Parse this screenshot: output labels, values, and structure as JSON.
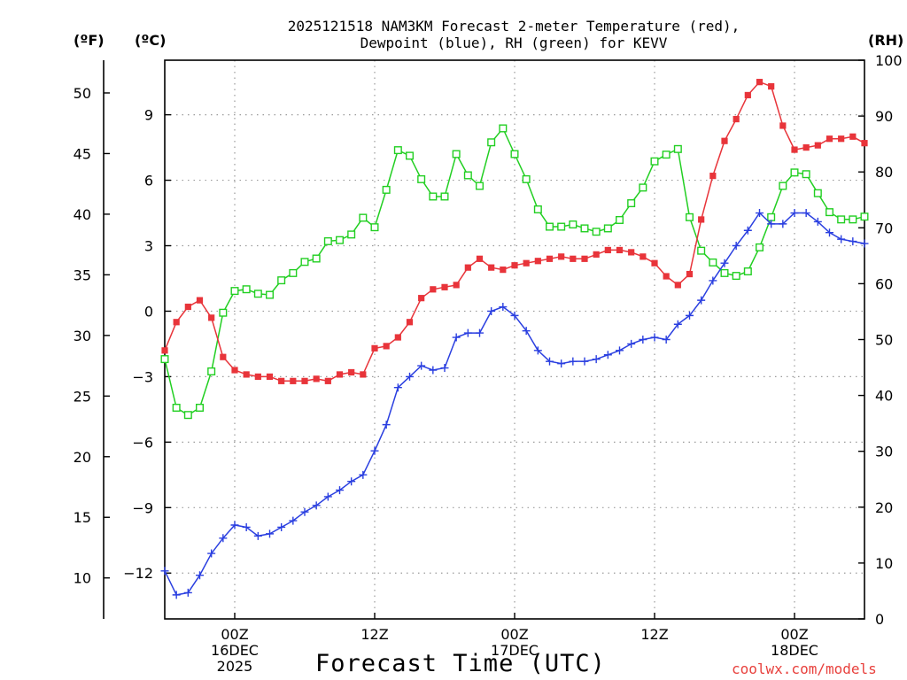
{
  "chart_data": {
    "type": "line",
    "title_line1": "2025121518 NAM3KM Forecast 2-meter Temperature (red),",
    "title_line2": "Dewpoint (blue), RH (green) for KEVV",
    "xlabel": "Forecast Time (UTC)",
    "credit": "coolwx.com/models",
    "units": {
      "fahrenheit": "(ºF)",
      "celsius": "(ºC)",
      "rh": "(RH)"
    },
    "x_hours_range": [
      -6,
      54
    ],
    "x_ticks": [
      {
        "hour": 0,
        "line1": "00Z",
        "line2": "16DEC",
        "line3": "2025"
      },
      {
        "hour": 12,
        "line1": "12Z",
        "line2": "",
        "line3": ""
      },
      {
        "hour": 24,
        "line1": "00Z",
        "line2": "17DEC",
        "line3": ""
      },
      {
        "hour": 36,
        "line1": "12Z",
        "line2": "",
        "line3": ""
      },
      {
        "hour": 48,
        "line1": "00Z",
        "line2": "18DEC",
        "line3": ""
      }
    ],
    "celsius_axis": {
      "range": [
        -14.1,
        11.5
      ],
      "ticks": [
        9,
        6,
        3,
        0,
        -3,
        -6,
        -9,
        -12
      ],
      "tick_labels": [
        "9",
        "6",
        "3",
        "0",
        "−3",
        "−6",
        "−9",
        "−12"
      ]
    },
    "fahrenheit_axis": {
      "ticks": [
        50,
        45,
        40,
        35,
        30,
        25,
        20,
        15,
        10
      ],
      "tick_labels": [
        "50",
        "45",
        "40",
        "35",
        "30",
        "25",
        "20",
        "15",
        "10"
      ]
    },
    "rh_axis": {
      "range": [
        0,
        100
      ],
      "ticks": [
        100,
        90,
        80,
        70,
        60,
        50,
        40,
        30,
        20,
        10,
        0
      ],
      "tick_labels": [
        "100",
        "90",
        "80",
        "70",
        "60",
        "50",
        "40",
        "30",
        "20",
        "10",
        "0"
      ]
    },
    "hours": [
      -6,
      -5,
      -4,
      -3,
      -2,
      -1,
      0,
      1,
      2,
      3,
      4,
      5,
      6,
      7,
      8,
      9,
      10,
      11,
      12,
      13,
      14,
      15,
      16,
      17,
      18,
      19,
      20,
      21,
      22,
      23,
      24,
      25,
      26,
      27,
      28,
      29,
      30,
      31,
      32,
      33,
      34,
      35,
      36,
      37,
      38,
      39,
      40,
      41,
      42,
      43,
      44,
      45,
      46,
      47,
      48,
      49,
      50,
      51,
      52,
      53,
      54
    ],
    "series": [
      {
        "name": "2-meter Temperature",
        "unit": "C",
        "color": "#e8343a",
        "marker": "filled-square",
        "values": [
          -1.8,
          -0.5,
          0.2,
          0.5,
          -0.3,
          -2.1,
          -2.7,
          -2.9,
          -3.0,
          -3.0,
          -3.2,
          -3.2,
          -3.2,
          -3.1,
          -3.2,
          -2.9,
          -2.8,
          -2.9,
          -1.7,
          -1.6,
          -1.2,
          -0.5,
          0.6,
          1.0,
          1.1,
          1.2,
          2.0,
          2.4,
          2.0,
          1.9,
          2.1,
          2.2,
          2.3,
          2.4,
          2.5,
          2.4,
          2.4,
          2.6,
          2.8,
          2.8,
          2.7,
          2.5,
          2.2,
          1.6,
          1.2,
          1.7,
          4.2,
          6.2,
          7.8,
          8.8,
          9.9,
          10.5,
          10.3,
          8.5,
          7.4,
          7.5,
          7.6,
          7.9,
          7.9,
          8.0,
          7.7
        ]
      },
      {
        "name": "Dewpoint",
        "unit": "C",
        "color": "#2a3fe0",
        "marker": "plus",
        "values": [
          -11.9,
          -13.0,
          -12.9,
          -12.1,
          -11.1,
          -10.4,
          -9.8,
          -9.9,
          -10.3,
          -10.2,
          -9.9,
          -9.6,
          -9.2,
          -8.9,
          -8.5,
          -8.2,
          -7.8,
          -7.5,
          -6.4,
          -5.2,
          -3.5,
          -3.0,
          -2.5,
          -2.7,
          -2.6,
          -1.2,
          -1.0,
          -1.0,
          0.0,
          0.2,
          -0.2,
          -0.9,
          -1.8,
          -2.3,
          -2.4,
          -2.3,
          -2.3,
          -2.2,
          -2.0,
          -1.8,
          -1.5,
          -1.3,
          -1.2,
          -1.3,
          -0.6,
          -0.2,
          0.5,
          1.4,
          2.2,
          3.0,
          3.7,
          4.5,
          4.0,
          4.0,
          4.5,
          4.5,
          4.1,
          3.6,
          3.3,
          3.2,
          3.1
        ]
      },
      {
        "name": "RH",
        "unit": "%",
        "color": "#22cf22",
        "marker": "open-square",
        "values": [
          46.5,
          37.8,
          36.5,
          37.8,
          44.3,
          54.8,
          58.7,
          59.0,
          58.2,
          58.0,
          60.6,
          61.9,
          63.9,
          64.5,
          67.6,
          67.8,
          68.8,
          71.8,
          70.1,
          76.8,
          83.9,
          82.9,
          78.7,
          75.6,
          75.6,
          83.2,
          79.4,
          77.5,
          85.3,
          87.8,
          83.2,
          78.7,
          73.3,
          70.2,
          70.2,
          70.6,
          69.9,
          69.3,
          69.9,
          71.4,
          74.4,
          77.2,
          81.9,
          83.1,
          84.1,
          71.9,
          65.9,
          63.8,
          61.9,
          61.4,
          62.2,
          66.5,
          71.9,
          77.5,
          79.9,
          79.6,
          76.2,
          72.8,
          71.5,
          71.5,
          72.0
        ]
      }
    ]
  }
}
